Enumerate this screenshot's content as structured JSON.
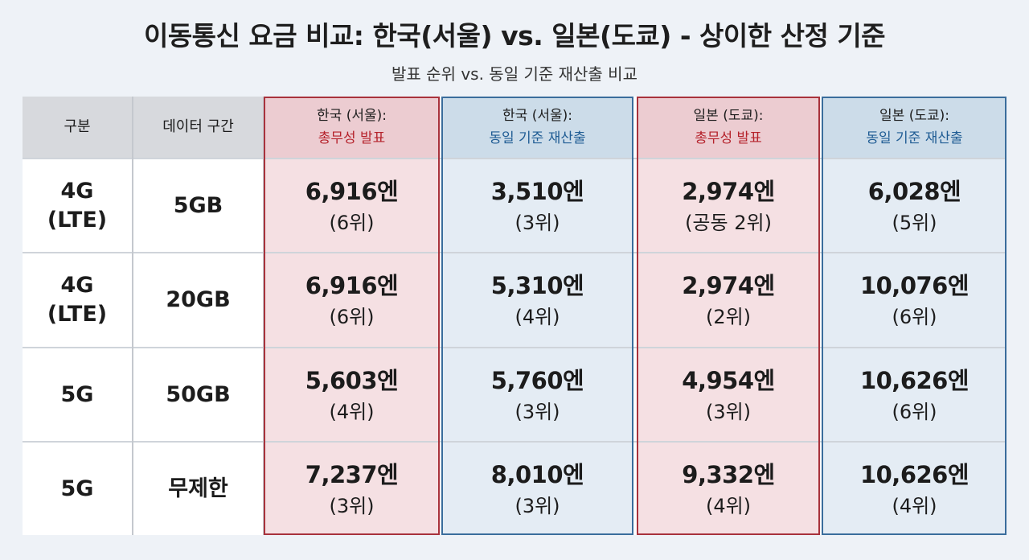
{
  "title": "이동통신 요금 비교: 한국(서울) vs. 일본(도쿄) - 상이한 산정 기준",
  "subtitle": "발표 순위 vs. 동일 기준 재산출 비교",
  "headers": {
    "category": "구분",
    "data_range": "데이터 구간",
    "kr_official": {
      "line1": "한국 (서울):",
      "line2": "총무성 발표"
    },
    "kr_recalc": {
      "line1": "한국 (서울):",
      "line2": "동일 기준 재산출"
    },
    "jp_official": {
      "line1": "일본 (도쿄):",
      "line2": "총무성 발표"
    },
    "jp_recalc": {
      "line1": "일본 (도쿄):",
      "line2": "동일 기준 재산출"
    }
  },
  "rows": [
    {
      "category_line1": "4G",
      "category_line2": "(LTE)",
      "data": "5GB",
      "kr_official": {
        "price": "6,916엔",
        "rank": "(6위)"
      },
      "kr_recalc": {
        "price": "3,510엔",
        "rank": "(3위)"
      },
      "jp_official": {
        "price": "2,974엔",
        "rank": "(공동 2위)"
      },
      "jp_recalc": {
        "price": "6,028엔",
        "rank": "(5위)"
      }
    },
    {
      "category_line1": "4G",
      "category_line2": "(LTE)",
      "data": "20GB",
      "kr_official": {
        "price": "6,916엔",
        "rank": "(6위)"
      },
      "kr_recalc": {
        "price": "5,310엔",
        "rank": "(4위)"
      },
      "jp_official": {
        "price": "2,974엔",
        "rank": "(2위)"
      },
      "jp_recalc": {
        "price": "10,076엔",
        "rank": "(6위)"
      }
    },
    {
      "category_line1": "5G",
      "category_line2": "",
      "data": "50GB",
      "kr_official": {
        "price": "5,603엔",
        "rank": "(4위)"
      },
      "kr_recalc": {
        "price": "5,760엔",
        "rank": "(3위)"
      },
      "jp_official": {
        "price": "4,954엔",
        "rank": "(3위)"
      },
      "jp_recalc": {
        "price": "10,626엔",
        "rank": "(6위)"
      }
    },
    {
      "category_line1": "5G",
      "category_line2": "",
      "data": "무제한",
      "kr_official": {
        "price": "7,237엔",
        "rank": "(3위)"
      },
      "kr_recalc": {
        "price": "8,010엔",
        "rank": "(3위)"
      },
      "jp_official": {
        "price": "9,332엔",
        "rank": "(4위)"
      },
      "jp_recalc": {
        "price": "10,626엔",
        "rank": "(4위)"
      }
    }
  ],
  "colors": {
    "red_accent": "#b5222b",
    "blue_accent": "#1f5c94",
    "red_border": "#a8323c",
    "blue_border": "#3a6d9c"
  }
}
